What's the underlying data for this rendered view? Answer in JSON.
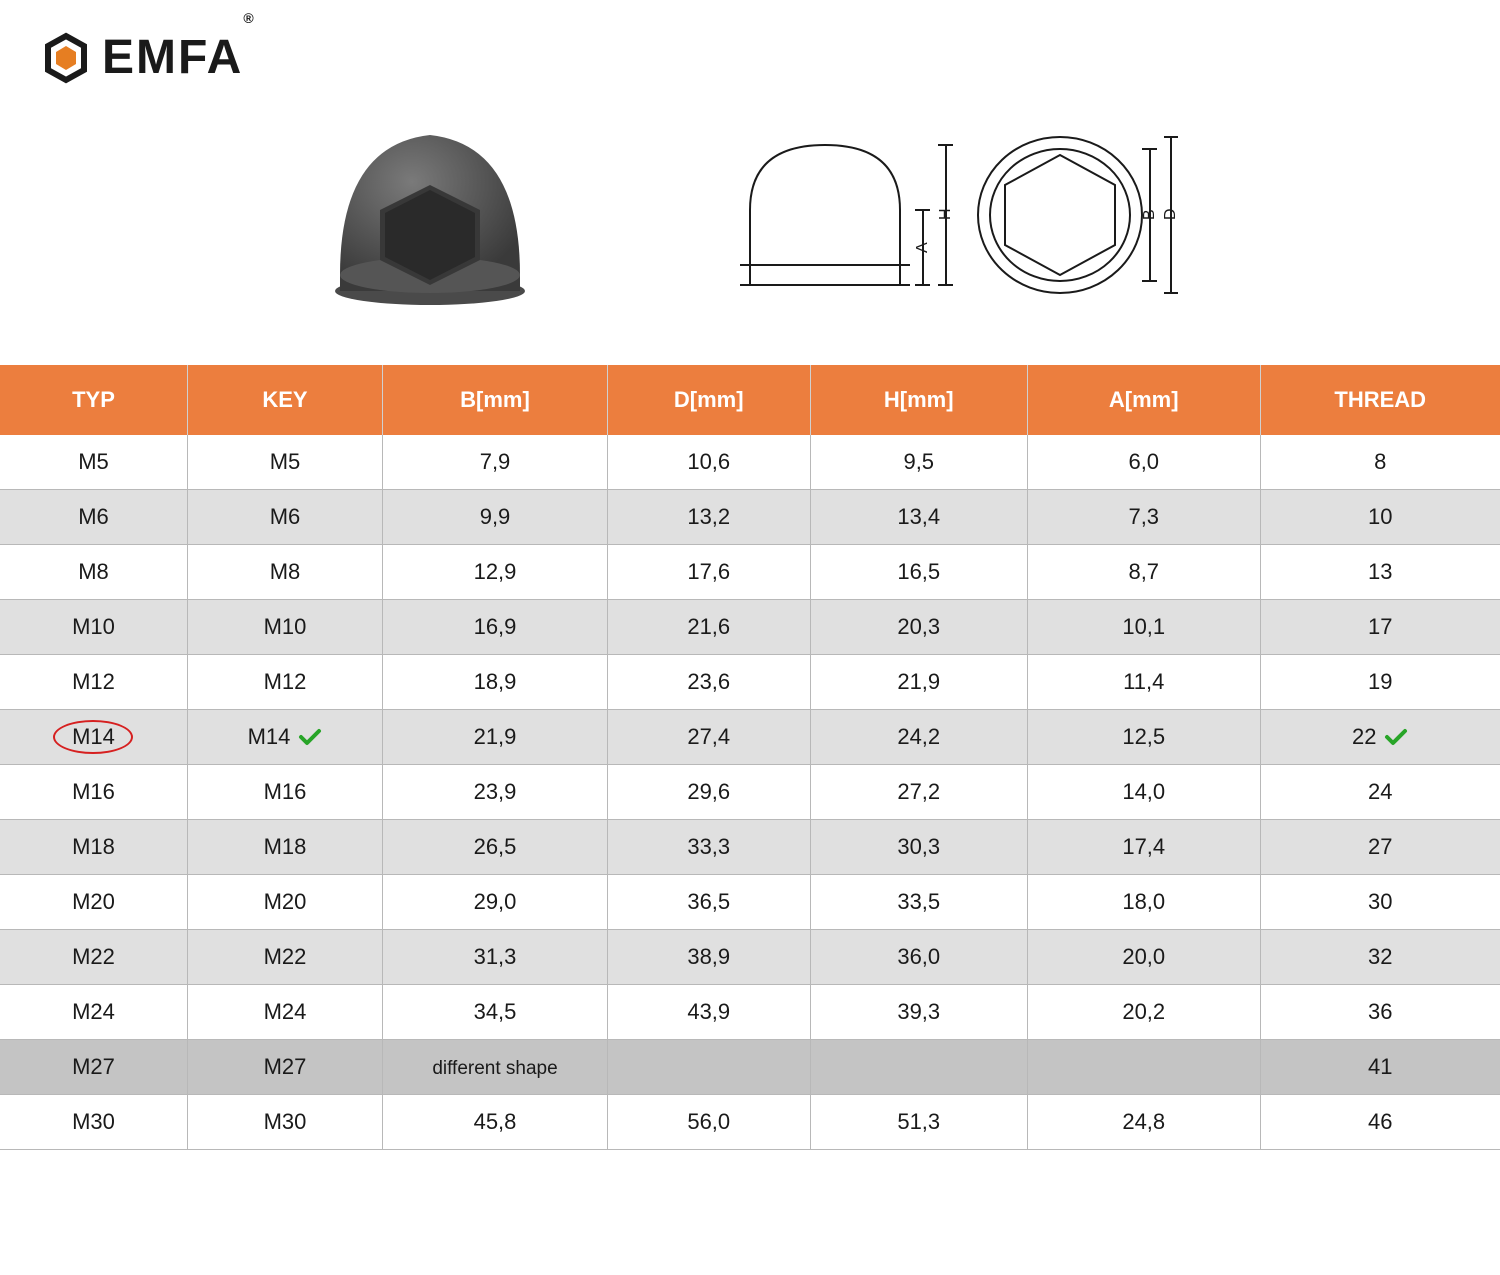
{
  "brand": {
    "name": "EMFA",
    "reg": "®",
    "logo_icon_color": "#e67e22",
    "logo_text_color": "#1a1a1a"
  },
  "colors": {
    "header_bg": "#ec7e3e",
    "header_text": "#ffffff",
    "row_odd": "#ffffff",
    "row_even": "#e0e0e0",
    "row_darker": "#c4c4c4",
    "border": "#b8b8b8",
    "highlight_ring": "#d62020",
    "check_color": "#28a528",
    "text": "#1a1a1a",
    "product_fill": "#5a5a5a",
    "diagram_stroke": "#1a1a1a"
  },
  "table": {
    "columns": [
      "TYP",
      "KEY",
      "B[mm]",
      "D[mm]",
      "H[mm]",
      "A[mm]",
      "THREAD"
    ],
    "col_widths_pct": [
      12.5,
      13,
      15,
      13.5,
      14.5,
      15.5,
      16
    ],
    "rows": [
      {
        "cells": [
          "M5",
          "M5",
          "7,9",
          "10,6",
          "9,5",
          "6,0",
          "8"
        ],
        "bg": "odd"
      },
      {
        "cells": [
          "M6",
          "M6",
          "9,9",
          "13,2",
          "13,4",
          "7,3",
          "10"
        ],
        "bg": "even"
      },
      {
        "cells": [
          "M8",
          "M8",
          "12,9",
          "17,6",
          "16,5",
          "8,7",
          "13"
        ],
        "bg": "odd"
      },
      {
        "cells": [
          "M10",
          "M10",
          "16,9",
          "21,6",
          "20,3",
          "10,1",
          "17"
        ],
        "bg": "even"
      },
      {
        "cells": [
          "M12",
          "M12",
          "18,9",
          "23,6",
          "21,9",
          "11,4",
          "19"
        ],
        "bg": "odd"
      },
      {
        "cells": [
          "M14",
          "M14",
          "21,9",
          "27,4",
          "24,2",
          "12,5",
          "22"
        ],
        "bg": "even",
        "highlight_col0": true,
        "check_col1": true,
        "check_col6": true
      },
      {
        "cells": [
          "M16",
          "M16",
          "23,9",
          "29,6",
          "27,2",
          "14,0",
          "24"
        ],
        "bg": "odd"
      },
      {
        "cells": [
          "M18",
          "M18",
          "26,5",
          "33,3",
          "30,3",
          "17,4",
          "27"
        ],
        "bg": "even"
      },
      {
        "cells": [
          "M20",
          "M20",
          "29,0",
          "36,5",
          "33,5",
          "18,0",
          "30"
        ],
        "bg": "odd"
      },
      {
        "cells": [
          "M22",
          "M22",
          "31,3",
          "38,9",
          "36,0",
          "20,0",
          "32"
        ],
        "bg": "even"
      },
      {
        "cells": [
          "M24",
          "M24",
          "34,5",
          "43,9",
          "39,3",
          "20,2",
          "36"
        ],
        "bg": "odd"
      },
      {
        "cells": [
          "M27",
          "M27",
          "different shape",
          "",
          "",
          "",
          "41"
        ],
        "bg": "darker",
        "small_col2": true
      },
      {
        "cells": [
          "M30",
          "M30",
          "45,8",
          "56,0",
          "51,3",
          "24,8",
          "46"
        ],
        "bg": "odd"
      }
    ]
  },
  "diagram_labels": {
    "A": "A",
    "H": "H",
    "B": "B",
    "D": "D"
  }
}
